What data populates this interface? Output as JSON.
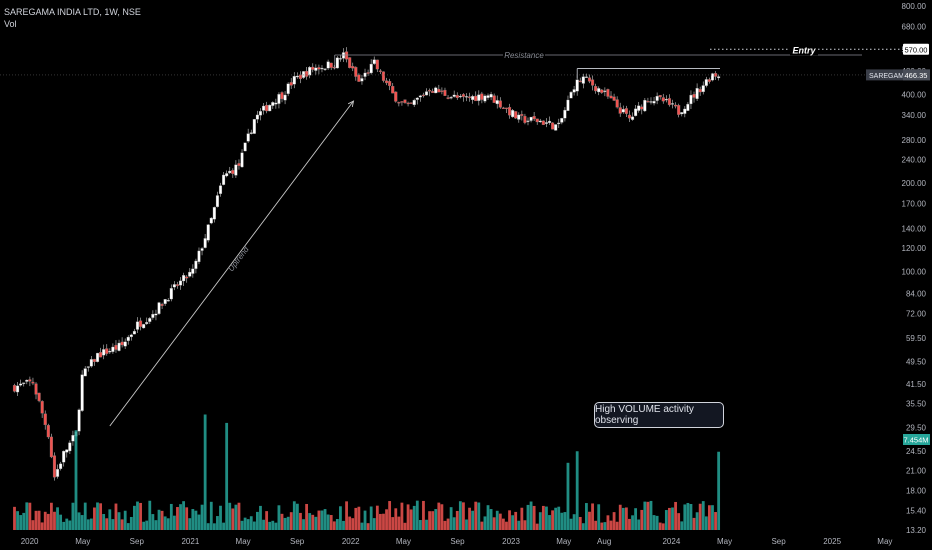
{
  "header": {
    "symbol_line": "SAREGAMA INDIA LTD, 1W, NSE",
    "indicator_label": "Vol"
  },
  "annotations": {
    "resistance_label": "Resistance",
    "entry_label": "Entry",
    "uptrend_label": "Uptrend",
    "volume_callout": "High VOLUME activity observing"
  },
  "price_badges": {
    "entry_value": "570.00",
    "symbol": "SAREGAMA",
    "last_price": "466.35",
    "volume_value": "7.454M"
  },
  "colors": {
    "up": "#26a69a",
    "down": "#ef5350",
    "background": "#000000",
    "text": "#b2b5be"
  },
  "chart_data": {
    "type": "candlestick",
    "title": "SAREGAMA INDIA LTD, 1W, NSE",
    "yscale": "log",
    "y_ticks": [
      "800.00",
      "680.00",
      "570.00",
      "480.00",
      "400.00",
      "340.00",
      "280.00",
      "240.00",
      "200.00",
      "170.00",
      "140.00",
      "120.00",
      "100.00",
      "84.00",
      "72.00",
      "59.50",
      "49.50",
      "41.50",
      "35.50",
      "29.50",
      "24.50",
      "21.00",
      "18.00",
      "15.40",
      "13.20"
    ],
    "x_ticks": [
      "2020",
      "May",
      "Sep",
      "2021",
      "May",
      "Sep",
      "2022",
      "May",
      "Sep",
      "2023",
      "May",
      "Aug",
      "2024",
      "May",
      "Sep",
      "2025",
      "May"
    ],
    "close_path": [
      {
        "date": "2020-01-03",
        "price": 40.5
      },
      {
        "date": "2020-02-14",
        "price": 42
      },
      {
        "date": "2020-03-20",
        "price": 28
      },
      {
        "date": "2020-04-03",
        "price": 20
      },
      {
        "date": "2020-04-24",
        "price": 24
      },
      {
        "date": "2020-05-22",
        "price": 28
      },
      {
        "date": "2020-06-05",
        "price": 44
      },
      {
        "date": "2020-07-10",
        "price": 52
      },
      {
        "date": "2020-09-04",
        "price": 56
      },
      {
        "date": "2020-10-09",
        "price": 66
      },
      {
        "date": "2020-11-13",
        "price": 72
      },
      {
        "date": "2021-01-08",
        "price": 90
      },
      {
        "date": "2021-02-12",
        "price": 100
      },
      {
        "date": "2021-03-26",
        "price": 150
      },
      {
        "date": "2021-04-23",
        "price": 210
      },
      {
        "date": "2021-05-28",
        "price": 230
      },
      {
        "date": "2021-07-02",
        "price": 330
      },
      {
        "date": "2021-08-13",
        "price": 380
      },
      {
        "date": "2021-09-03",
        "price": 400
      },
      {
        "date": "2021-10-01",
        "price": 450
      },
      {
        "date": "2021-11-12",
        "price": 490
      },
      {
        "date": "2021-12-31",
        "price": 510
      },
      {
        "date": "2022-01-21",
        "price": 545
      },
      {
        "date": "2022-02-25",
        "price": 440
      },
      {
        "date": "2022-04-01",
        "price": 510
      },
      {
        "date": "2022-05-13",
        "price": 400
      },
      {
        "date": "2022-06-17",
        "price": 360
      },
      {
        "date": "2022-08-05",
        "price": 420
      },
      {
        "date": "2022-10-14",
        "price": 385
      },
      {
        "date": "2022-12-16",
        "price": 400
      },
      {
        "date": "2023-02-24",
        "price": 330
      },
      {
        "date": "2023-04-14",
        "price": 325
      },
      {
        "date": "2023-05-26",
        "price": 310
      },
      {
        "date": "2023-06-30",
        "price": 430
      },
      {
        "date": "2023-07-21",
        "price": 455
      },
      {
        "date": "2023-09-01",
        "price": 410
      },
      {
        "date": "2023-11-03",
        "price": 330
      },
      {
        "date": "2023-12-15",
        "price": 390
      },
      {
        "date": "2024-01-19",
        "price": 380
      },
      {
        "date": "2024-02-23",
        "price": 350
      },
      {
        "date": "2024-04-05",
        "price": 410
      },
      {
        "date": "2024-05-10",
        "price": 470
      },
      {
        "date": "2024-05-24",
        "price": 466.35
      }
    ],
    "levels": {
      "resistance": 545,
      "entry": 570,
      "recent_high": 490,
      "last_close": 466.35
    },
    "uptrend_line": {
      "start": {
        "date": "2020-08-07",
        "price": 29
      },
      "end": {
        "date": "2022-01-21",
        "price": 380
      }
    },
    "volume": {
      "unit": "M",
      "last": 7.454,
      "notable_spikes": [
        {
          "date": "2020-05-22",
          "value": 9.5
        },
        {
          "date": "2021-03-12",
          "value": 11
        },
        {
          "date": "2021-04-30",
          "value": 10.2
        },
        {
          "date": "2023-06-16",
          "value": 6.4
        },
        {
          "date": "2023-07-07",
          "value": 7.5
        },
        {
          "date": "2024-05-24",
          "value": 7.454
        }
      ]
    }
  }
}
